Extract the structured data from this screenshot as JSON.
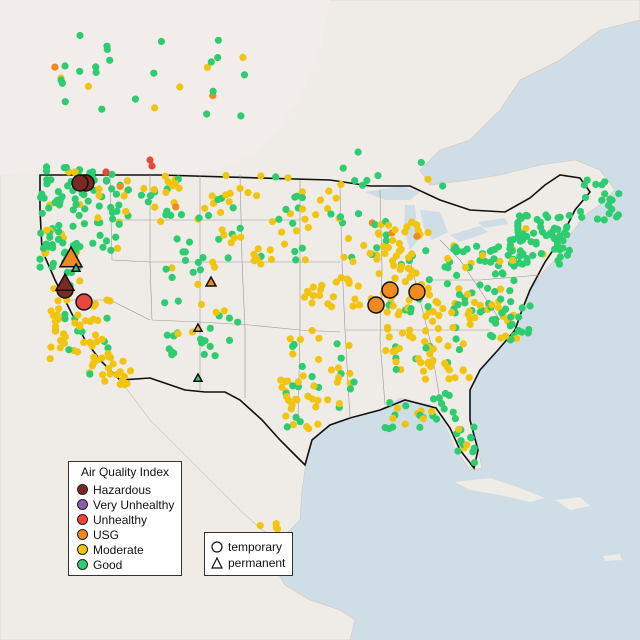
{
  "legend": {
    "title": "Air Quality Index",
    "items": [
      {
        "label": "Hazardous",
        "color": "#7a2a22"
      },
      {
        "label": "Very Unhealthy",
        "color": "#8d5bb0"
      },
      {
        "label": "Unhealthy",
        "color": "#e8483b"
      },
      {
        "label": "USG",
        "color": "#ee8a1e"
      },
      {
        "label": "Moderate",
        "color": "#f1c40f"
      },
      {
        "label": "Good",
        "color": "#2ecc71"
      }
    ]
  },
  "type_legend": {
    "items": [
      {
        "label": "temporary",
        "icon": "circle-icon"
      },
      {
        "label": "permanent",
        "icon": "triangle-icon"
      }
    ]
  }
}
